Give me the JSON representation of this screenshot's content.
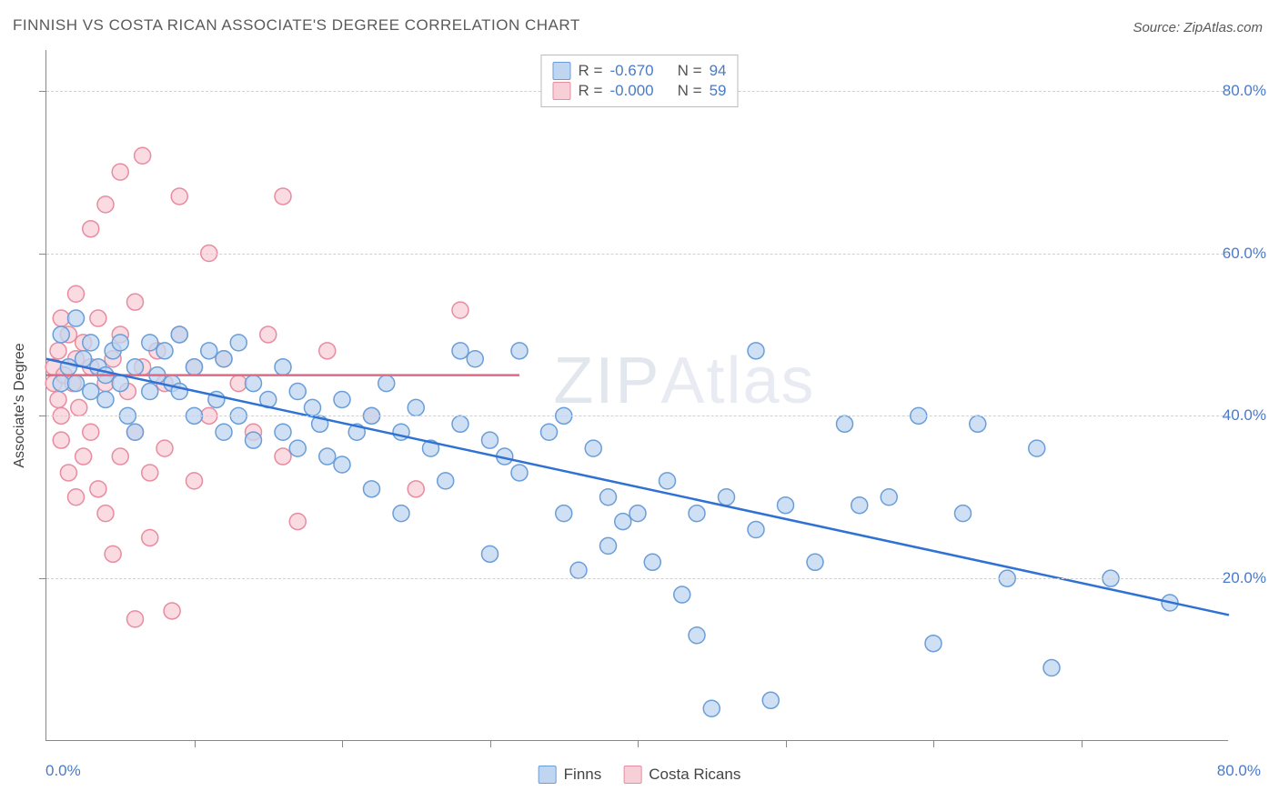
{
  "title": "FINNISH VS COSTA RICAN ASSOCIATE'S DEGREE CORRELATION CHART",
  "source": "Source: ZipAtlas.com",
  "y_axis_title": "Associate's Degree",
  "watermark": {
    "part1": "ZIP",
    "part2": "Atlas"
  },
  "chart": {
    "type": "scatter",
    "xlim": [
      0,
      80
    ],
    "ylim": [
      0,
      85
    ],
    "x_label_min": "0.0%",
    "x_label_max": "80.0%",
    "y_ticks": [
      20,
      40,
      60,
      80
    ],
    "y_tick_labels": [
      "20.0%",
      "40.0%",
      "60.0%",
      "80.0%"
    ],
    "x_tick_positions": [
      10,
      20,
      30,
      40,
      50,
      60,
      70
    ],
    "grid_color": "#d0d0d0",
    "background_color": "#ffffff",
    "axis_text_color": "#4a7ac8",
    "marker_radius": 9,
    "marker_stroke_width": 1.5,
    "line_width": 2.5
  },
  "series": {
    "finns": {
      "label": "Finns",
      "fill": "#c0d5f0",
      "stroke": "#6a9ed8",
      "line_color": "#2f72d4",
      "R": "-0.670",
      "N": "94",
      "trend": {
        "x1": 0,
        "y1": 47,
        "x2": 80,
        "y2": 15.5
      },
      "points": [
        [
          1,
          50
        ],
        [
          1,
          44
        ],
        [
          1.5,
          46
        ],
        [
          2,
          52
        ],
        [
          2,
          44
        ],
        [
          2.5,
          47
        ],
        [
          3,
          49
        ],
        [
          3,
          43
        ],
        [
          3.5,
          46
        ],
        [
          4,
          45
        ],
        [
          4,
          42
        ],
        [
          4.5,
          48
        ],
        [
          5,
          49
        ],
        [
          5,
          44
        ],
        [
          5.5,
          40
        ],
        [
          6,
          46
        ],
        [
          6,
          38
        ],
        [
          7,
          49
        ],
        [
          7,
          43
        ],
        [
          7.5,
          45
        ],
        [
          8,
          48
        ],
        [
          8.5,
          44
        ],
        [
          9,
          50
        ],
        [
          9,
          43
        ],
        [
          10,
          46
        ],
        [
          10,
          40
        ],
        [
          11,
          48
        ],
        [
          11.5,
          42
        ],
        [
          12,
          47
        ],
        [
          12,
          38
        ],
        [
          13,
          49
        ],
        [
          13,
          40
        ],
        [
          14,
          44
        ],
        [
          14,
          37
        ],
        [
          15,
          42
        ],
        [
          16,
          38
        ],
        [
          16,
          46
        ],
        [
          17,
          43
        ],
        [
          17,
          36
        ],
        [
          18,
          41
        ],
        [
          18.5,
          39
        ],
        [
          19,
          35
        ],
        [
          20,
          42
        ],
        [
          20,
          34
        ],
        [
          21,
          38
        ],
        [
          22,
          40
        ],
        [
          22,
          31
        ],
        [
          23,
          44
        ],
        [
          24,
          28
        ],
        [
          24,
          38
        ],
        [
          25,
          41
        ],
        [
          26,
          36
        ],
        [
          27,
          32
        ],
        [
          28,
          39
        ],
        [
          28,
          48
        ],
        [
          29,
          47
        ],
        [
          30,
          37
        ],
        [
          30,
          23
        ],
        [
          31,
          35
        ],
        [
          32,
          48
        ],
        [
          32,
          33
        ],
        [
          34,
          38
        ],
        [
          35,
          28
        ],
        [
          35,
          40
        ],
        [
          36,
          21
        ],
        [
          37,
          36
        ],
        [
          38,
          24
        ],
        [
          38,
          30
        ],
        [
          39,
          27
        ],
        [
          40,
          28
        ],
        [
          41,
          22
        ],
        [
          42,
          32
        ],
        [
          43,
          18
        ],
        [
          44,
          28
        ],
        [
          44,
          13
        ],
        [
          45,
          4
        ],
        [
          46,
          30
        ],
        [
          48,
          48
        ],
        [
          48,
          26
        ],
        [
          49,
          5
        ],
        [
          50,
          29
        ],
        [
          52,
          22
        ],
        [
          54,
          39
        ],
        [
          55,
          29
        ],
        [
          57,
          30
        ],
        [
          59,
          40
        ],
        [
          60,
          12
        ],
        [
          62,
          28
        ],
        [
          65,
          20
        ],
        [
          67,
          36
        ],
        [
          68,
          9
        ],
        [
          72,
          20
        ],
        [
          76,
          17
        ],
        [
          63,
          39
        ]
      ]
    },
    "costa_ricans": {
      "label": "Costa Ricans",
      "fill": "#f7cfd7",
      "stroke": "#e88ca0",
      "line_color": "#e06a86",
      "R": "-0.000",
      "N": "59",
      "trend": {
        "x1": 0,
        "y1": 45,
        "x2": 32,
        "y2": 45
      },
      "points": [
        [
          0.5,
          46
        ],
        [
          0.5,
          44
        ],
        [
          0.8,
          48
        ],
        [
          0.8,
          42
        ],
        [
          1,
          52
        ],
        [
          1,
          40
        ],
        [
          1,
          37
        ],
        [
          1.2,
          45
        ],
        [
          1.5,
          50
        ],
        [
          1.5,
          33
        ],
        [
          1.8,
          44
        ],
        [
          2,
          55
        ],
        [
          2,
          47
        ],
        [
          2,
          30
        ],
        [
          2.2,
          41
        ],
        [
          2.5,
          49
        ],
        [
          2.5,
          35
        ],
        [
          3,
          63
        ],
        [
          3,
          46
        ],
        [
          3,
          38
        ],
        [
          3.5,
          52
        ],
        [
          3.5,
          31
        ],
        [
          4,
          66
        ],
        [
          4,
          44
        ],
        [
          4,
          28
        ],
        [
          4.5,
          47
        ],
        [
          4.5,
          23
        ],
        [
          5,
          70
        ],
        [
          5,
          50
        ],
        [
          5,
          35
        ],
        [
          5.5,
          43
        ],
        [
          6,
          54
        ],
        [
          6,
          38
        ],
        [
          6,
          15
        ],
        [
          6.5,
          72
        ],
        [
          6.5,
          46
        ],
        [
          7,
          33
        ],
        [
          7,
          25
        ],
        [
          7.5,
          48
        ],
        [
          8,
          44
        ],
        [
          8,
          36
        ],
        [
          8.5,
          16
        ],
        [
          9,
          67
        ],
        [
          9,
          50
        ],
        [
          10,
          46
        ],
        [
          10,
          32
        ],
        [
          11,
          60
        ],
        [
          11,
          40
        ],
        [
          12,
          47
        ],
        [
          13,
          44
        ],
        [
          14,
          38
        ],
        [
          15,
          50
        ],
        [
          16,
          35
        ],
        [
          16,
          67
        ],
        [
          17,
          27
        ],
        [
          19,
          48
        ],
        [
          22,
          40
        ],
        [
          25,
          31
        ],
        [
          28,
          53
        ]
      ]
    }
  },
  "legend_top": {
    "r_label": "R =",
    "n_label": "N ="
  },
  "legend_bottom": {
    "items": [
      "finns",
      "costa_ricans"
    ]
  }
}
